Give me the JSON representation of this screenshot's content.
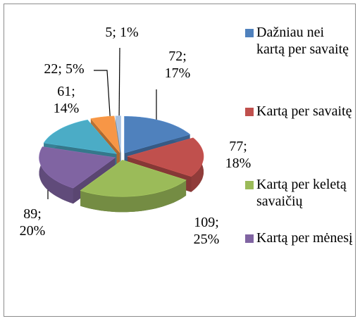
{
  "chart_data": {
    "type": "pie",
    "categories": [
      "Dažniau nei kartą per savaitę",
      "Kartą per savaitę",
      "Kartą per keletą savaičių",
      "Kartą per mėnesį",
      null,
      null,
      null
    ],
    "values": [
      72,
      77,
      109,
      89,
      61,
      22,
      5
    ],
    "value_labels": [
      "72; 17%",
      "77; 18%",
      "109; 25%",
      "89; 20%",
      "61; 14%",
      "22; 5%",
      "5; 1%"
    ],
    "colors": [
      "#4f81bd",
      "#c0504d",
      "#9bbb59",
      "#8064a2",
      "#4bacc6",
      "#f79646",
      "#a9c1de"
    ],
    "legend": "right"
  }
}
